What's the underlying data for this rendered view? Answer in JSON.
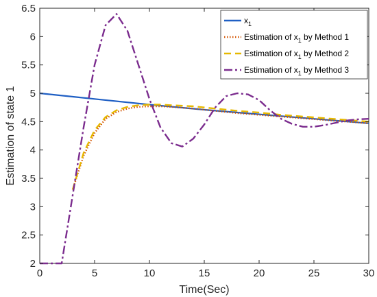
{
  "chart_data": {
    "type": "line",
    "xlabel": "Time(Sec)",
    "ylabel": "Estimation of state 1",
    "xlim": [
      0,
      30
    ],
    "ylim": [
      2,
      6.5
    ],
    "x_ticks": [
      "0",
      "5",
      "10",
      "15",
      "20",
      "25",
      "30"
    ],
    "y_ticks": [
      "2",
      "2.5",
      "3",
      "3.5",
      "4",
      "4.5",
      "5",
      "5.5",
      "6",
      "6.5"
    ],
    "grid": false,
    "legend_position": "top-right",
    "series": [
      {
        "name": "x1",
        "legend": {
          "base": "x",
          "sub": "1",
          "suffix": ""
        },
        "color": "#1f5fc4",
        "style": "solid",
        "x": [
          0,
          5,
          10,
          15,
          20,
          25,
          30
        ],
        "y": [
          5.0,
          4.9,
          4.8,
          4.71,
          4.63,
          4.55,
          4.47
        ]
      },
      {
        "name": "Estimation of x1 by Method 1",
        "legend": {
          "base": "Estimation of x",
          "sub": "1",
          "suffix": " by Method 1"
        },
        "color": "#d35400",
        "style": "dotted",
        "x": [
          3,
          4,
          5,
          6,
          7,
          8,
          9,
          10,
          11,
          12,
          14,
          16,
          18,
          20,
          22,
          24,
          26,
          28,
          30
        ],
        "y": [
          3.3,
          3.9,
          4.3,
          4.55,
          4.67,
          4.73,
          4.76,
          4.77,
          4.77,
          4.76,
          4.73,
          4.69,
          4.65,
          4.62,
          4.59,
          4.56,
          4.53,
          4.5,
          4.47
        ]
      },
      {
        "name": "Estimation of x1 by Method 2",
        "legend": {
          "base": "Estimation of x",
          "sub": "1",
          "suffix": " by Method 2"
        },
        "color": "#e6b800",
        "style": "dashed",
        "x": [
          3,
          4,
          5,
          6,
          7,
          8,
          9,
          10,
          11,
          12,
          14,
          16,
          18,
          20,
          22,
          24,
          26,
          28,
          30
        ],
        "y": [
          3.3,
          3.95,
          4.35,
          4.58,
          4.7,
          4.76,
          4.79,
          4.8,
          4.8,
          4.79,
          4.77,
          4.73,
          4.69,
          4.66,
          4.62,
          4.59,
          4.56,
          4.53,
          4.5
        ]
      },
      {
        "name": "Estimation of x1 by Method 3",
        "legend": {
          "base": "Estimation of x",
          "sub": "1",
          "suffix": " by Method 3"
        },
        "color": "#7b2c8e",
        "style": "dashdot",
        "x": [
          0,
          2,
          3,
          4,
          5,
          6,
          7,
          8,
          9,
          10,
          11,
          12,
          13,
          14,
          15,
          16,
          17,
          18,
          19,
          20,
          21,
          22,
          23,
          24,
          25,
          26,
          27,
          28,
          29,
          30
        ],
        "y": [
          2.0,
          2.0,
          3.2,
          4.4,
          5.5,
          6.2,
          6.4,
          6.1,
          5.5,
          4.9,
          4.4,
          4.12,
          4.06,
          4.2,
          4.45,
          4.75,
          4.95,
          5.0,
          4.98,
          4.88,
          4.7,
          4.55,
          4.46,
          4.41,
          4.41,
          4.44,
          4.48,
          4.52,
          4.54,
          4.55
        ]
      }
    ]
  }
}
